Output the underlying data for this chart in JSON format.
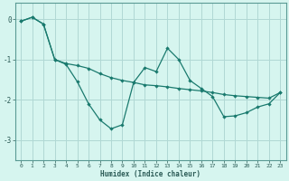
{
  "xlabel": "Humidex (Indice chaleur)",
  "background_color": "#d6f5ef",
  "grid_color": "#b0d8d4",
  "line_color": "#1a7a6e",
  "xlim": [
    -0.5,
    23.5
  ],
  "ylim": [
    -3.5,
    0.4
  ],
  "yticks": [
    0,
    -1,
    -2,
    -3
  ],
  "xticks": [
    0,
    1,
    2,
    3,
    4,
    5,
    6,
    7,
    8,
    9,
    10,
    11,
    12,
    13,
    14,
    15,
    16,
    17,
    18,
    19,
    20,
    21,
    22,
    23
  ],
  "line1_x": [
    0,
    1,
    2,
    3,
    4,
    5,
    6,
    7,
    8,
    9,
    10,
    11,
    12,
    13,
    14,
    15,
    16,
    17,
    18,
    19,
    20,
    21,
    22,
    23
  ],
  "line1_y": [
    -0.05,
    0.05,
    -0.12,
    -1.0,
    -1.1,
    -1.15,
    -1.22,
    -1.35,
    -1.45,
    -1.52,
    -1.57,
    -1.63,
    -1.65,
    -1.68,
    -1.72,
    -1.75,
    -1.78,
    -1.82,
    -1.87,
    -1.9,
    -1.92,
    -1.94,
    -1.96,
    -1.82
  ],
  "line2_x": [
    0,
    1,
    2,
    3,
    4,
    5,
    6,
    7,
    8,
    9,
    10,
    11,
    12,
    13,
    14,
    15,
    16,
    17,
    18,
    19,
    20,
    21,
    22,
    23
  ],
  "line2_y": [
    -0.05,
    0.05,
    -0.12,
    -1.0,
    -1.12,
    -1.55,
    -2.1,
    -2.5,
    -2.72,
    -2.62,
    -1.57,
    -1.2,
    -1.3,
    -0.72,
    -1.0,
    -1.52,
    -1.72,
    -1.92,
    -2.42,
    -2.4,
    -2.32,
    -2.18,
    -2.1,
    -1.82
  ]
}
